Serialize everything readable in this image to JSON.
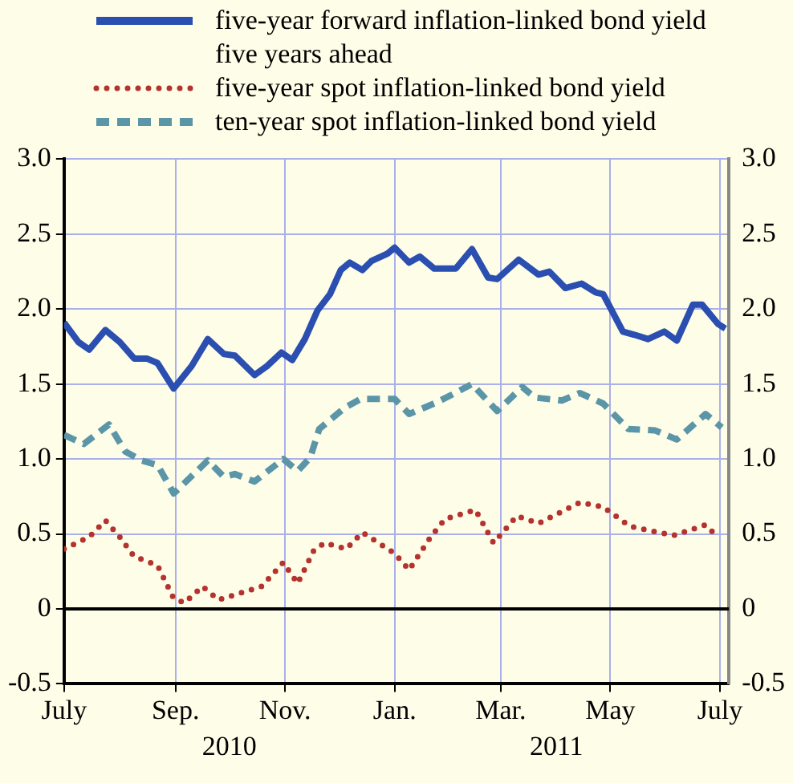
{
  "chart_data": {
    "type": "line",
    "xlim": [
      "2010-07-01",
      "2011-07-06"
    ],
    "xticks": [
      {
        "value": "2010-07-01",
        "label": "July"
      },
      {
        "value": "2010-09-01",
        "label": "Sep."
      },
      {
        "value": "2010-11-01",
        "label": "Nov."
      },
      {
        "value": "2011-01-01",
        "label": "Jan."
      },
      {
        "value": "2011-03-01",
        "label": "Mar."
      },
      {
        "value": "2011-05-01",
        "label": "May"
      },
      {
        "value": "2011-07-01",
        "label": "July"
      }
    ],
    "x2lim": [
      "2010-07-01",
      "2011-07-06"
    ],
    "x2ticks": [
      {
        "value": "2010-10-01",
        "label": "2010"
      },
      {
        "value": "2011-04-01",
        "label": "2011"
      }
    ],
    "ylim": [
      -0.5,
      3.0
    ],
    "yticks": [
      -0.5,
      0,
      {
        "value": 0.5,
        "label": "0.5"
      },
      {
        "value": 1,
        "label": "1.0"
      },
      {
        "value": 1.5,
        "label": "1.5"
      },
      {
        "value": 2,
        "label": "2.0"
      },
      {
        "value": 2.5,
        "label": "2.5"
      },
      {
        "value": 3,
        "label": "3.0"
      }
    ],
    "y2lim": [
      -0.5,
      3.0
    ],
    "y2ticks": [
      -0.5,
      0,
      {
        "value": 0.5,
        "label": "0.5"
      },
      {
        "value": 1,
        "label": "1.0"
      },
      {
        "value": 1.5,
        "label": "1.5"
      },
      {
        "value": 2,
        "label": "2.0"
      },
      {
        "value": 2.5,
        "label": "2.5"
      },
      {
        "value": 3,
        "label": "3.0"
      }
    ],
    "grid": true,
    "legend": "top left",
    "marker": "none",
    "ref_lines": [
      {
        "axis": "y",
        "value": 0,
        "color": "#000000"
      }
    ],
    "series": [
      {
        "name": "five-year forward inflation-linked bond yield\nfive years ahead",
        "color": "#2a4fb0",
        "line_style": "solid",
        "x": [
          "2010-07-01",
          "2010-07-09",
          "2010-07-15",
          "2010-07-24",
          "2010-08-01",
          "2010-08-09",
          "2010-08-16",
          "2010-08-22",
          "2010-08-31",
          "2010-09-10",
          "2010-09-19",
          "2010-09-28",
          "2010-10-04",
          "2010-10-15",
          "2010-10-22",
          "2010-10-30",
          "2010-11-05",
          "2010-11-12",
          "2010-11-19",
          "2010-11-26",
          "2010-12-02",
          "2010-12-07",
          "2010-12-14",
          "2010-12-19",
          "2010-12-28",
          "2011-01-01",
          "2011-01-09",
          "2011-01-15",
          "2011-01-23",
          "2011-02-04",
          "2011-02-13",
          "2011-02-22",
          "2011-02-27",
          "2011-03-11",
          "2011-03-22",
          "2011-03-28",
          "2011-04-06",
          "2011-04-15",
          "2011-04-23",
          "2011-04-27",
          "2011-05-08",
          "2011-05-14",
          "2011-05-22",
          "2011-05-31",
          "2011-06-07",
          "2011-06-16",
          "2011-06-21",
          "2011-06-30",
          "2011-07-04"
        ],
        "values": [
          1.91,
          1.78,
          1.73,
          1.86,
          1.78,
          1.67,
          1.67,
          1.64,
          1.47,
          1.62,
          1.8,
          1.7,
          1.69,
          1.56,
          1.62,
          1.71,
          1.66,
          1.8,
          1.99,
          2.1,
          2.26,
          2.31,
          2.26,
          2.32,
          2.37,
          2.41,
          2.31,
          2.35,
          2.27,
          2.27,
          2.4,
          2.21,
          2.2,
          2.33,
          2.23,
          2.25,
          2.14,
          2.17,
          2.11,
          2.1,
          1.85,
          1.83,
          1.8,
          1.85,
          1.79,
          2.03,
          2.03,
          1.9,
          1.87
        ]
      },
      {
        "name": "five-year spot inflation-linked bond yield",
        "color": "#b5332e",
        "line_style": "dotted",
        "x": [
          "2010-07-01",
          "2010-07-15",
          "2010-07-24",
          "2010-08-01",
          "2010-08-09",
          "2010-08-22",
          "2010-08-31",
          "2010-09-06",
          "2010-09-16",
          "2010-09-25",
          "2010-10-19",
          "2010-10-31",
          "2010-11-08",
          "2010-11-17",
          "2010-11-23",
          "2010-12-05",
          "2010-12-14",
          "2011-01-01",
          "2011-01-09",
          "2011-01-21",
          "2011-01-29",
          "2011-02-15",
          "2011-02-25",
          "2011-03-10",
          "2011-03-22",
          "2011-04-14",
          "2011-04-27",
          "2011-05-12",
          "2011-06-05",
          "2011-06-23",
          "2011-06-28"
        ],
        "values": [
          0.4,
          0.48,
          0.59,
          0.48,
          0.35,
          0.29,
          0.07,
          0.04,
          0.15,
          0.06,
          0.15,
          0.31,
          0.17,
          0.39,
          0.44,
          0.4,
          0.51,
          0.37,
          0.26,
          0.48,
          0.6,
          0.66,
          0.44,
          0.62,
          0.57,
          0.71,
          0.68,
          0.55,
          0.49,
          0.56,
          0.5
        ]
      },
      {
        "name": "ten-year spot inflation-linked bond yield",
        "color": "#5b95a8",
        "line_style": "dashed",
        "x": [
          "2010-07-01",
          "2010-07-12",
          "2010-07-26",
          "2010-08-04",
          "2010-08-13",
          "2010-08-22",
          "2010-08-31",
          "2010-09-19",
          "2010-09-28",
          "2010-10-04",
          "2010-10-15",
          "2010-10-31",
          "2010-11-08",
          "2010-11-15",
          "2010-11-20",
          "2010-12-04",
          "2010-12-13",
          "2011-01-01",
          "2011-01-09",
          "2011-01-23",
          "2011-02-02",
          "2011-02-13",
          "2011-02-27",
          "2011-03-13",
          "2011-03-20",
          "2011-04-04",
          "2011-04-14",
          "2011-04-27",
          "2011-05-11",
          "2011-05-26",
          "2011-06-07",
          "2011-06-23",
          "2011-07-02"
        ],
        "values": [
          1.16,
          1.1,
          1.23,
          1.05,
          0.99,
          0.96,
          0.77,
          0.99,
          0.88,
          0.9,
          0.85,
          1.0,
          0.92,
          1.01,
          1.2,
          1.34,
          1.4,
          1.4,
          1.3,
          1.37,
          1.43,
          1.5,
          1.32,
          1.48,
          1.41,
          1.39,
          1.44,
          1.37,
          1.2,
          1.19,
          1.13,
          1.3,
          1.21
        ]
      }
    ]
  }
}
